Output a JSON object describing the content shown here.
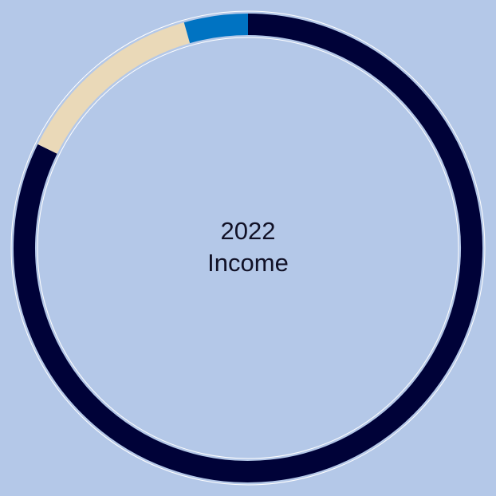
{
  "chart_data": {
    "type": "donut",
    "center_text": [
      "2022",
      "Income"
    ],
    "values": [
      82.3,
      13.3,
      4.4
    ],
    "colors": [
      "#000238",
      "#ead9b8",
      "#0073c2"
    ],
    "background": "#b4c8e8"
  }
}
